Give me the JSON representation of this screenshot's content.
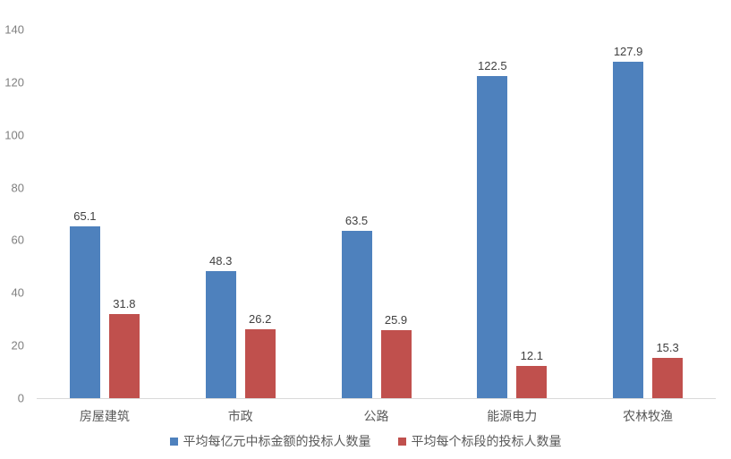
{
  "chart_data": {
    "type": "bar",
    "title": "",
    "xlabel": "",
    "ylabel": "",
    "categories": [
      "房屋建筑",
      "市政",
      "公路",
      "能源电力",
      "农林牧渔"
    ],
    "series": [
      {
        "name": "平均每亿元中标金额的投标人数量",
        "color": "#4e81bd",
        "values": [
          65.1,
          48.3,
          63.5,
          122.5,
          127.9
        ]
      },
      {
        "name": "平均每个标段的投标人数量",
        "color": "#c0504d",
        "values": [
          31.8,
          26.2,
          25.9,
          12.1,
          15.3
        ]
      }
    ],
    "ylim": [
      0,
      140
    ],
    "yticks": [
      0,
      20,
      40,
      60,
      80,
      100,
      120,
      140
    ],
    "grid": false,
    "legend_position": "bottom",
    "data_labels": true
  },
  "colors": {
    "background": "#ffffff",
    "axis_line": "#d9d9d9",
    "tick_label": "#7f7f7f",
    "data_label": "#404040",
    "category_label": "#595959"
  }
}
